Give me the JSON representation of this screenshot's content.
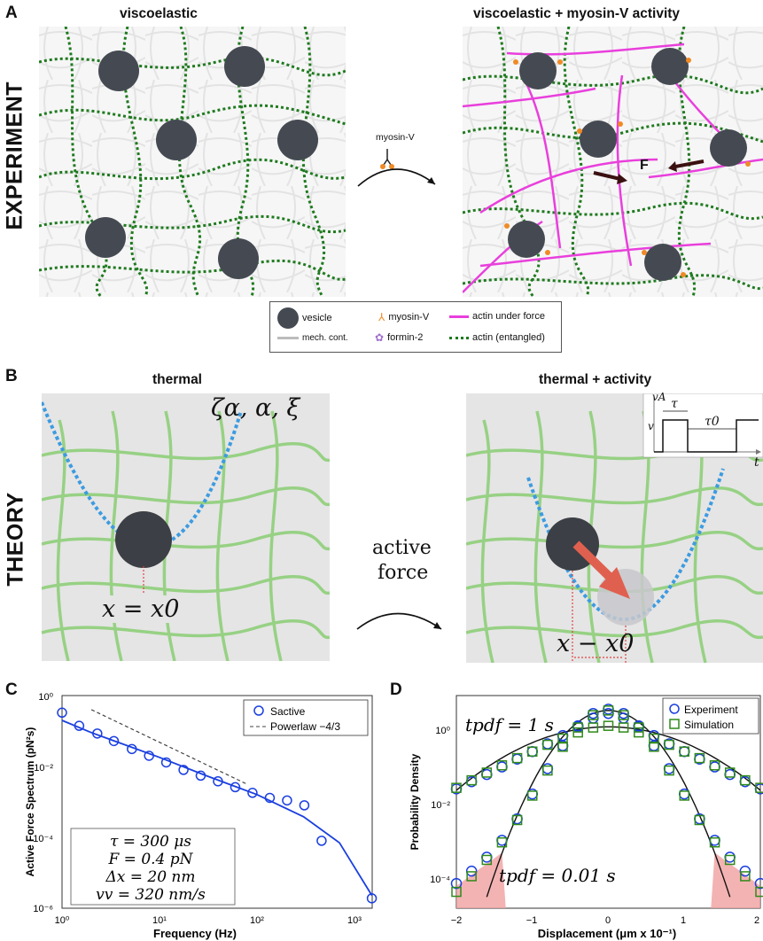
{
  "panels": {
    "A": {
      "letter": "A",
      "side_label": "EXPERIMENT",
      "left_title": "viscoelastic",
      "right_title": "viscoelastic + myosin-V activity",
      "arrow_label": "myosin-V",
      "force_label": "F",
      "legend": {
        "vesicle": "vesicle",
        "myosin": "myosin-V",
        "actin_force": "actin under force",
        "mech": "mech. cont.",
        "formin": "formin-2",
        "actin_entangled": "actin (entangled)"
      }
    },
    "B": {
      "letter": "B",
      "side_label": "THEORY",
      "left_title": "thermal",
      "right_title": "thermal + activity",
      "params_label": "ζα, α, ξ",
      "eq_left": "x = x0",
      "eq_right": "x − x0",
      "arrow_label_1": "active",
      "arrow_label_2": "force",
      "inset": {
        "y_label": "vA",
        "v_label": "v",
        "tau": "τ",
        "tau0": "τ0",
        "t_label": "t"
      }
    },
    "C": {
      "letter": "C",
      "ylabel": "Active Force Spectrum (pN²s)",
      "xlabel": "Frequency (Hz)",
      "legend_series": "Sactive",
      "legend_line": "Powerlaw −4/3",
      "params": [
        "τ = 300 μs",
        "F = 0.4 pN",
        "Δx = 20 nm",
        "vv = 320 nm/s"
      ],
      "y_ticks": [
        "10⁰",
        "10⁻²",
        "10⁻⁴",
        "10⁻⁶"
      ],
      "x_ticks": [
        "10⁰",
        "10¹",
        "10²",
        "10³"
      ]
    },
    "D": {
      "letter": "D",
      "ylabel": "Probability Density",
      "xlabel": "Displacement (μm x 10⁻¹)",
      "legend_exp": "Experiment",
      "legend_sim": "Simulation",
      "label_top": "tpdf = 1 s",
      "label_bottom": "tpdf = 0.01 s",
      "y_ticks": [
        "10⁰",
        "10⁻²",
        "10⁻⁴"
      ],
      "x_ticks": [
        "−2",
        "−1",
        "0",
        "1",
        "2"
      ]
    }
  },
  "chart_data": [
    {
      "type": "scatter",
      "panel": "C",
      "xlabel": "Frequency (Hz)",
      "ylabel": "Active Force Spectrum (pN²s)",
      "xscale": "log",
      "yscale": "log",
      "xlim": [
        1,
        2000
      ],
      "ylim": [
        1e-06,
        1
      ],
      "series": [
        {
          "name": "Sactive",
          "x": [
            1.0,
            1.5,
            2.3,
            3.4,
            5.2,
            7.8,
            11.7,
            17.6,
            26.4,
            39.7,
            59.7,
            89.7,
            134.9,
            202.8,
            304.9,
            458.4,
            1500
          ],
          "y": [
            0.33,
            0.14,
            0.085,
            0.052,
            0.031,
            0.02,
            0.013,
            0.008,
            0.0055,
            0.0038,
            0.0026,
            0.0018,
            0.0013,
            0.0011,
            0.0008,
            8e-05,
            1.9e-06
          ]
        },
        {
          "name": "fit",
          "x": [
            1,
            2,
            4,
            10,
            30,
            100,
            300,
            700,
            1500
          ],
          "y": [
            0.2,
            0.09,
            0.045,
            0.018,
            0.0055,
            0.0016,
            0.00038,
            7e-05,
            2.3e-06
          ]
        },
        {
          "name": "Powerlaw −4/3",
          "x": [
            2,
            80
          ],
          "y": [
            0.4,
            0.0031
          ]
        }
      ],
      "legend": "top-right"
    },
    {
      "type": "scatter",
      "panel": "D",
      "xlabel": "Displacement (μm x 10⁻¹)",
      "ylabel": "Probability Density",
      "yscale": "log",
      "xlim": [
        -2,
        2
      ],
      "ylim": [
        2e-05,
        3
      ],
      "series": [
        {
          "name": "Experiment",
          "x": [
            -2.0,
            -1.8,
            -1.6,
            -1.4,
            -1.2,
            -1.0,
            -0.8,
            -0.6,
            -0.4,
            -0.2,
            0.0,
            0.2,
            0.4,
            0.6,
            0.8,
            1.0,
            1.2,
            1.4,
            1.6,
            1.8,
            2.0
          ],
          "y": [
            0.016,
            0.024,
            0.036,
            0.055,
            0.085,
            0.13,
            0.2,
            0.32,
            0.52,
            0.85,
            1.1,
            0.85,
            0.52,
            0.32,
            0.2,
            0.13,
            0.085,
            0.055,
            0.036,
            0.024,
            0.016
          ]
        },
        {
          "name": "Simulation",
          "x": [
            -2.0,
            -1.8,
            -1.6,
            -1.4,
            -1.2,
            -1.0,
            -0.8,
            -0.6,
            -0.4,
            -0.2,
            0.0,
            0.2,
            0.4,
            0.6,
            0.8,
            1.0,
            1.2,
            1.4,
            1.6,
            1.8,
            2.0
          ],
          "y": [
            0.017,
            0.026,
            0.04,
            0.06,
            0.09,
            0.13,
            0.19,
            0.27,
            0.38,
            0.5,
            0.55,
            0.5,
            0.38,
            0.27,
            0.19,
            0.13,
            0.09,
            0.06,
            0.04,
            0.026,
            0.017
          ]
        },
        {
          "name": "Experiment (tpdf = 0.01 s)",
          "x": [
            -2.0,
            -1.8,
            -1.6,
            -1.4,
            -1.2,
            -1.0,
            -0.8,
            -0.6,
            -0.4,
            -0.2,
            0.0,
            0.2,
            0.4,
            0.6,
            0.8,
            1.0,
            1.2,
            1.4,
            1.6,
            1.8,
            2.0
          ],
          "y": [
            8e-05,
            0.00016,
            0.00035,
            0.0009,
            0.003,
            0.012,
            0.05,
            0.18,
            0.55,
            1.1,
            1.4,
            1.1,
            0.55,
            0.18,
            0.05,
            0.012,
            0.003,
            0.0009,
            0.00035,
            0.00016,
            8e-05
          ]
        },
        {
          "name": "Simulation (tpdf = 0.01 s)",
          "x": [
            -2.0,
            -1.8,
            -1.6,
            -1.4,
            -1.2,
            -1.0,
            -0.8,
            -0.6,
            -0.4,
            -0.2,
            0.0,
            0.2,
            0.4,
            0.6,
            0.8,
            1.0,
            1.2,
            1.4,
            1.6,
            1.8,
            2.0
          ],
          "y": [
            5e-05,
            0.00012,
            0.0003,
            0.0008,
            0.0028,
            0.011,
            0.045,
            0.17,
            0.5,
            1.0,
            1.3,
            1.0,
            0.5,
            0.17,
            0.045,
            0.011,
            0.0028,
            0.0008,
            0.0003,
            0.00012,
            5e-05
          ]
        }
      ],
      "legend": "top-right"
    }
  ]
}
